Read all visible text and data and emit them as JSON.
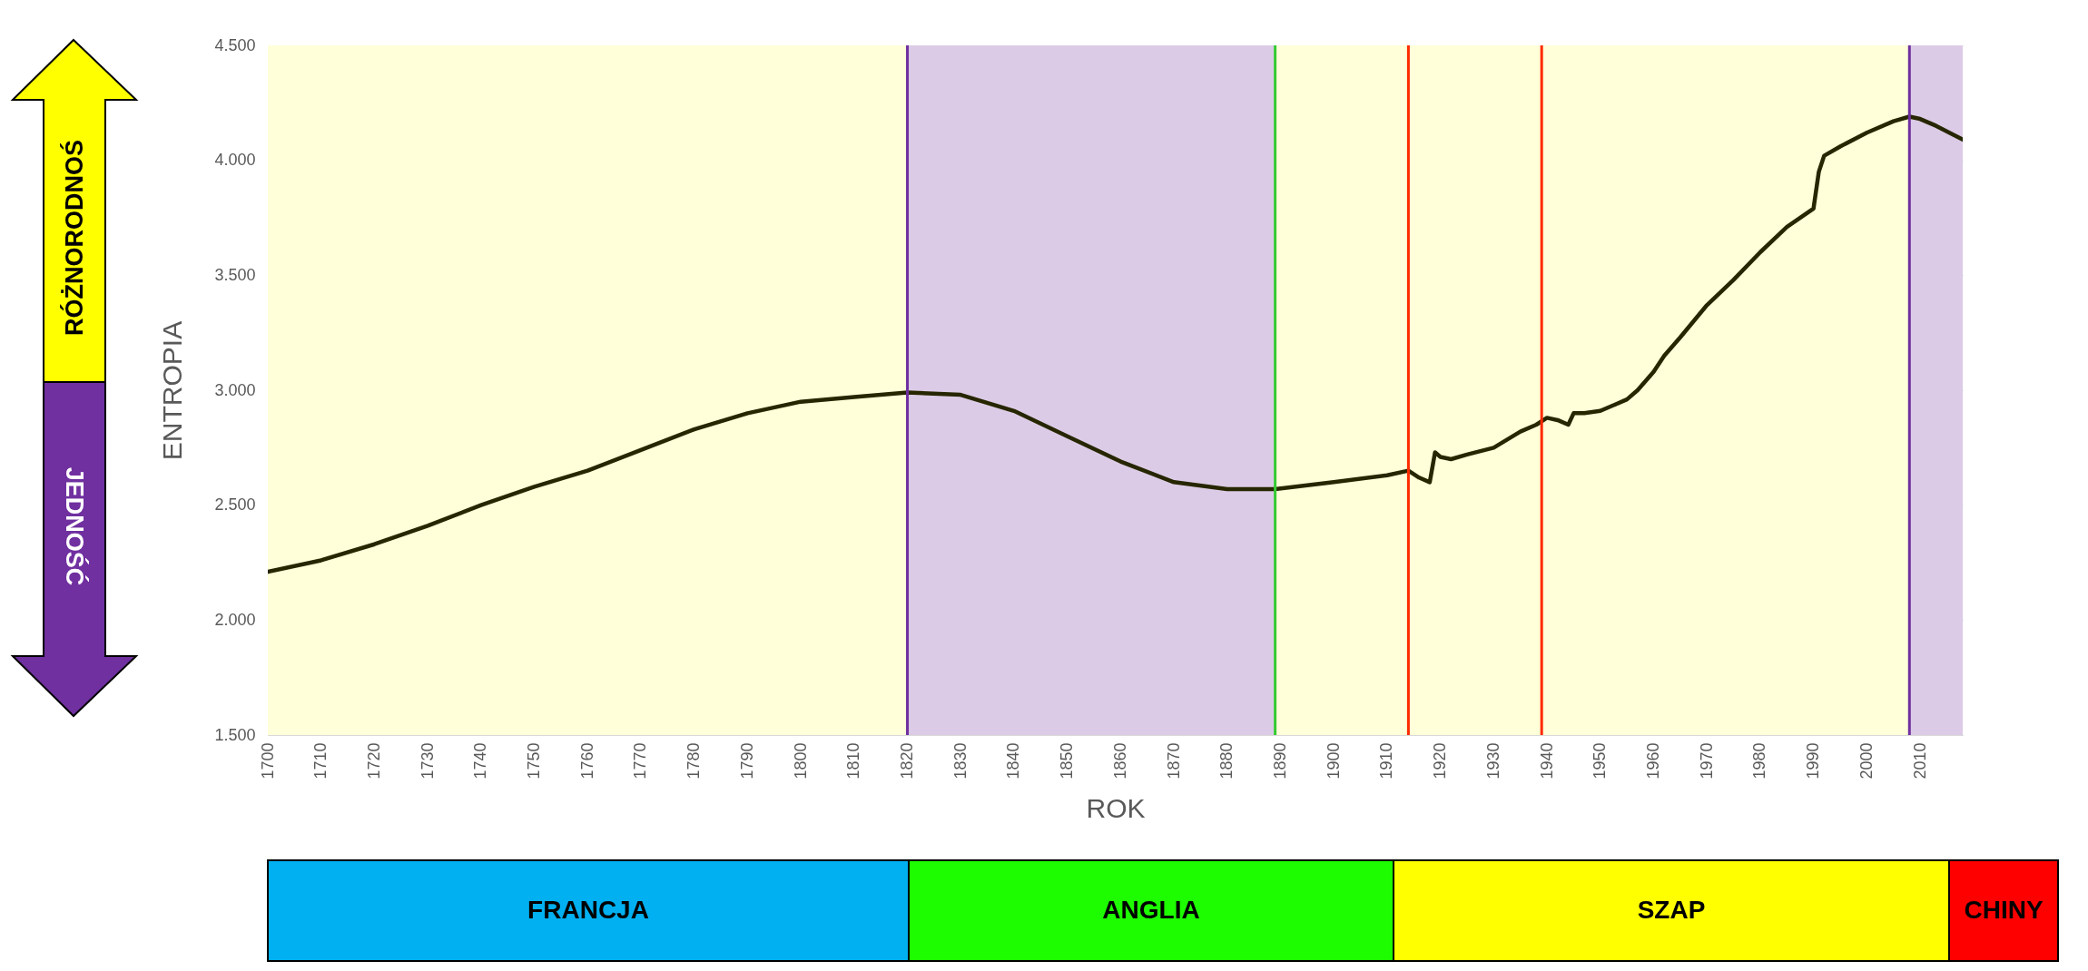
{
  "chart_data": [
    {
      "type": "line",
      "xlabel": "ROK",
      "ylabel": "ENTROPIA",
      "x": [
        1700,
        1710,
        1720,
        1730,
        1740,
        1750,
        1760,
        1770,
        1780,
        1790,
        1800,
        1810,
        1820,
        1830,
        1840,
        1850,
        1860,
        1870,
        1880,
        1889,
        1900,
        1910,
        1914,
        1916,
        1918,
        1919,
        1920,
        1922,
        1925,
        1930,
        1935,
        1938,
        1940,
        1942,
        1944,
        1945,
        1947,
        1950,
        1953,
        1955,
        1957,
        1960,
        1962,
        1965,
        1970,
        1975,
        1980,
        1985,
        1990,
        1991,
        1992,
        1995,
        2000,
        2005,
        2008,
        2010,
        2013,
        2018
      ],
      "series": [
        {
          "color": "#262600",
          "values": [
            2.21,
            2.26,
            2.33,
            2.41,
            2.5,
            2.58,
            2.65,
            2.74,
            2.83,
            2.9,
            2.95,
            2.97,
            2.99,
            2.98,
            2.91,
            2.8,
            2.69,
            2.6,
            2.57,
            2.57,
            2.6,
            2.63,
            2.65,
            2.62,
            2.6,
            2.73,
            2.71,
            2.7,
            2.72,
            2.75,
            2.82,
            2.85,
            2.88,
            2.87,
            2.85,
            2.9,
            2.9,
            2.91,
            2.94,
            2.96,
            3.0,
            3.08,
            3.15,
            3.23,
            3.37,
            3.48,
            3.6,
            3.71,
            3.79,
            3.95,
            4.02,
            4.06,
            4.12,
            4.17,
            4.19,
            4.18,
            4.15,
            4.09
          ]
        }
      ],
      "xlim": [
        1700,
        2018
      ],
      "xticks": [
        1700,
        1710,
        1720,
        1730,
        1740,
        1750,
        1760,
        1770,
        1780,
        1790,
        1800,
        1810,
        1820,
        1830,
        1840,
        1850,
        1860,
        1870,
        1880,
        1890,
        1900,
        1910,
        1920,
        1930,
        1940,
        1950,
        1960,
        1970,
        1980,
        1990,
        2000,
        2010
      ],
      "ylim": [
        1.5,
        4.5
      ],
      "yticks": [
        {
          "value": 1.5,
          "label": "1.500"
        },
        {
          "value": 2,
          "label": "2.000"
        },
        {
          "value": 2.5,
          "label": "2.500"
        },
        {
          "value": 3,
          "label": "3.000"
        },
        {
          "value": 3.5,
          "label": "3.500"
        },
        {
          "value": 4,
          "label": "4.000"
        },
        {
          "value": 4.5,
          "label": "4.500"
        }
      ],
      "grid": "y",
      "marker": "none",
      "line_style": "solid",
      "bands": [
        {
          "axis": "x",
          "from": 1700,
          "to": 1820,
          "color": "#ffffd9"
        },
        {
          "axis": "x",
          "from": 1820,
          "to": 1889,
          "color": "#dccbe6"
        },
        {
          "axis": "x",
          "from": 1889,
          "to": 2008,
          "color": "#ffffd9"
        },
        {
          "axis": "x",
          "from": 2008,
          "to": 2018,
          "color": "#dccbe6"
        }
      ],
      "ref_lines": [
        {
          "axis": "x",
          "value": 1820,
          "color": "#7030a0",
          "line_style": "solid"
        },
        {
          "axis": "x",
          "value": 1889,
          "color": "#33cc33",
          "line_style": "solid"
        },
        {
          "axis": "x",
          "value": 1914,
          "color": "#ff2a00",
          "line_style": "solid"
        },
        {
          "axis": "x",
          "value": 1939,
          "color": "#ff2a00",
          "line_style": "solid"
        },
        {
          "axis": "x",
          "value": 2008,
          "color": "#7030a0",
          "line_style": "solid"
        }
      ],
      "annotations": [
        "RÓŻNORODNOŚ",
        "JEDNOŚĆ"
      ]
    },
    {
      "type": "other",
      "categories": [
        "FRANCJA",
        "ANGLIA",
        "SZAP",
        "CHINY"
      ],
      "colors": [
        "#00b0f0",
        "#1efc00",
        "#ffff00",
        "#ff0000"
      ]
    }
  ]
}
